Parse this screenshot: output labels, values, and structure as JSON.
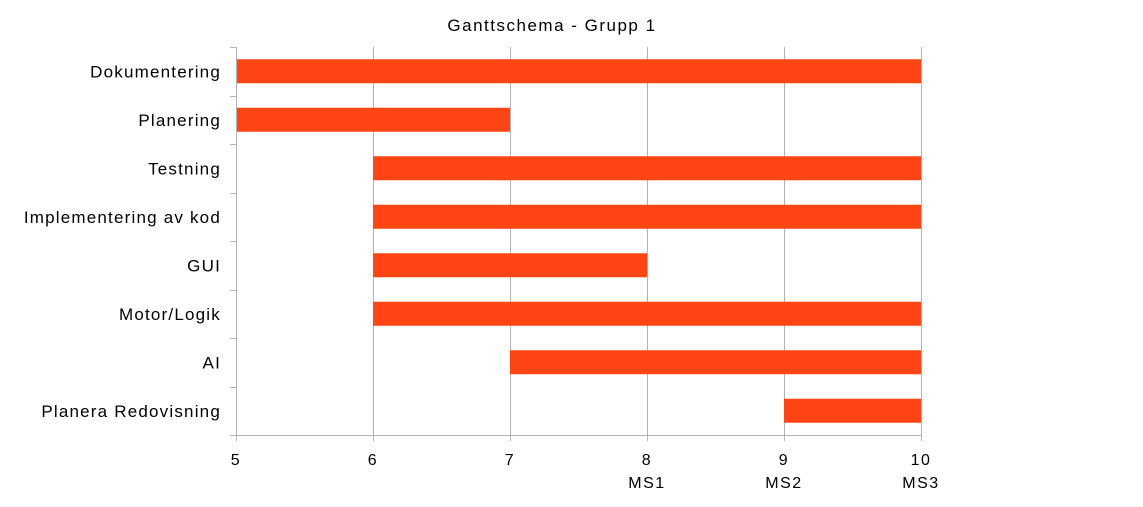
{
  "chart_data": {
    "type": "bar",
    "orientation": "horizontal",
    "subtype": "gantt",
    "title": "Ganttschema - Grupp 1",
    "xlabel": "",
    "ylabel": "",
    "xlim": [
      5,
      10
    ],
    "xticks": [
      5,
      6,
      7,
      8,
      9,
      10
    ],
    "milestones": [
      {
        "x": 8,
        "label": "MS1"
      },
      {
        "x": 9,
        "label": "MS2"
      },
      {
        "x": 10,
        "label": "MS3"
      }
    ],
    "grid": true,
    "legend": "none",
    "bar_color": "#ff4513",
    "tasks": [
      {
        "name": "Dokumentering",
        "start": 5,
        "end": 10
      },
      {
        "name": "Planering",
        "start": 5,
        "end": 7
      },
      {
        "name": "Testning",
        "start": 6,
        "end": 10
      },
      {
        "name": "Implementering av kod",
        "start": 6,
        "end": 10
      },
      {
        "name": "GUI",
        "start": 6,
        "end": 8
      },
      {
        "name": "Motor/Logik",
        "start": 6,
        "end": 10
      },
      {
        "name": "AI",
        "start": 7,
        "end": 10
      },
      {
        "name": "Planera Redovisning",
        "start": 9,
        "end": 10
      }
    ]
  }
}
